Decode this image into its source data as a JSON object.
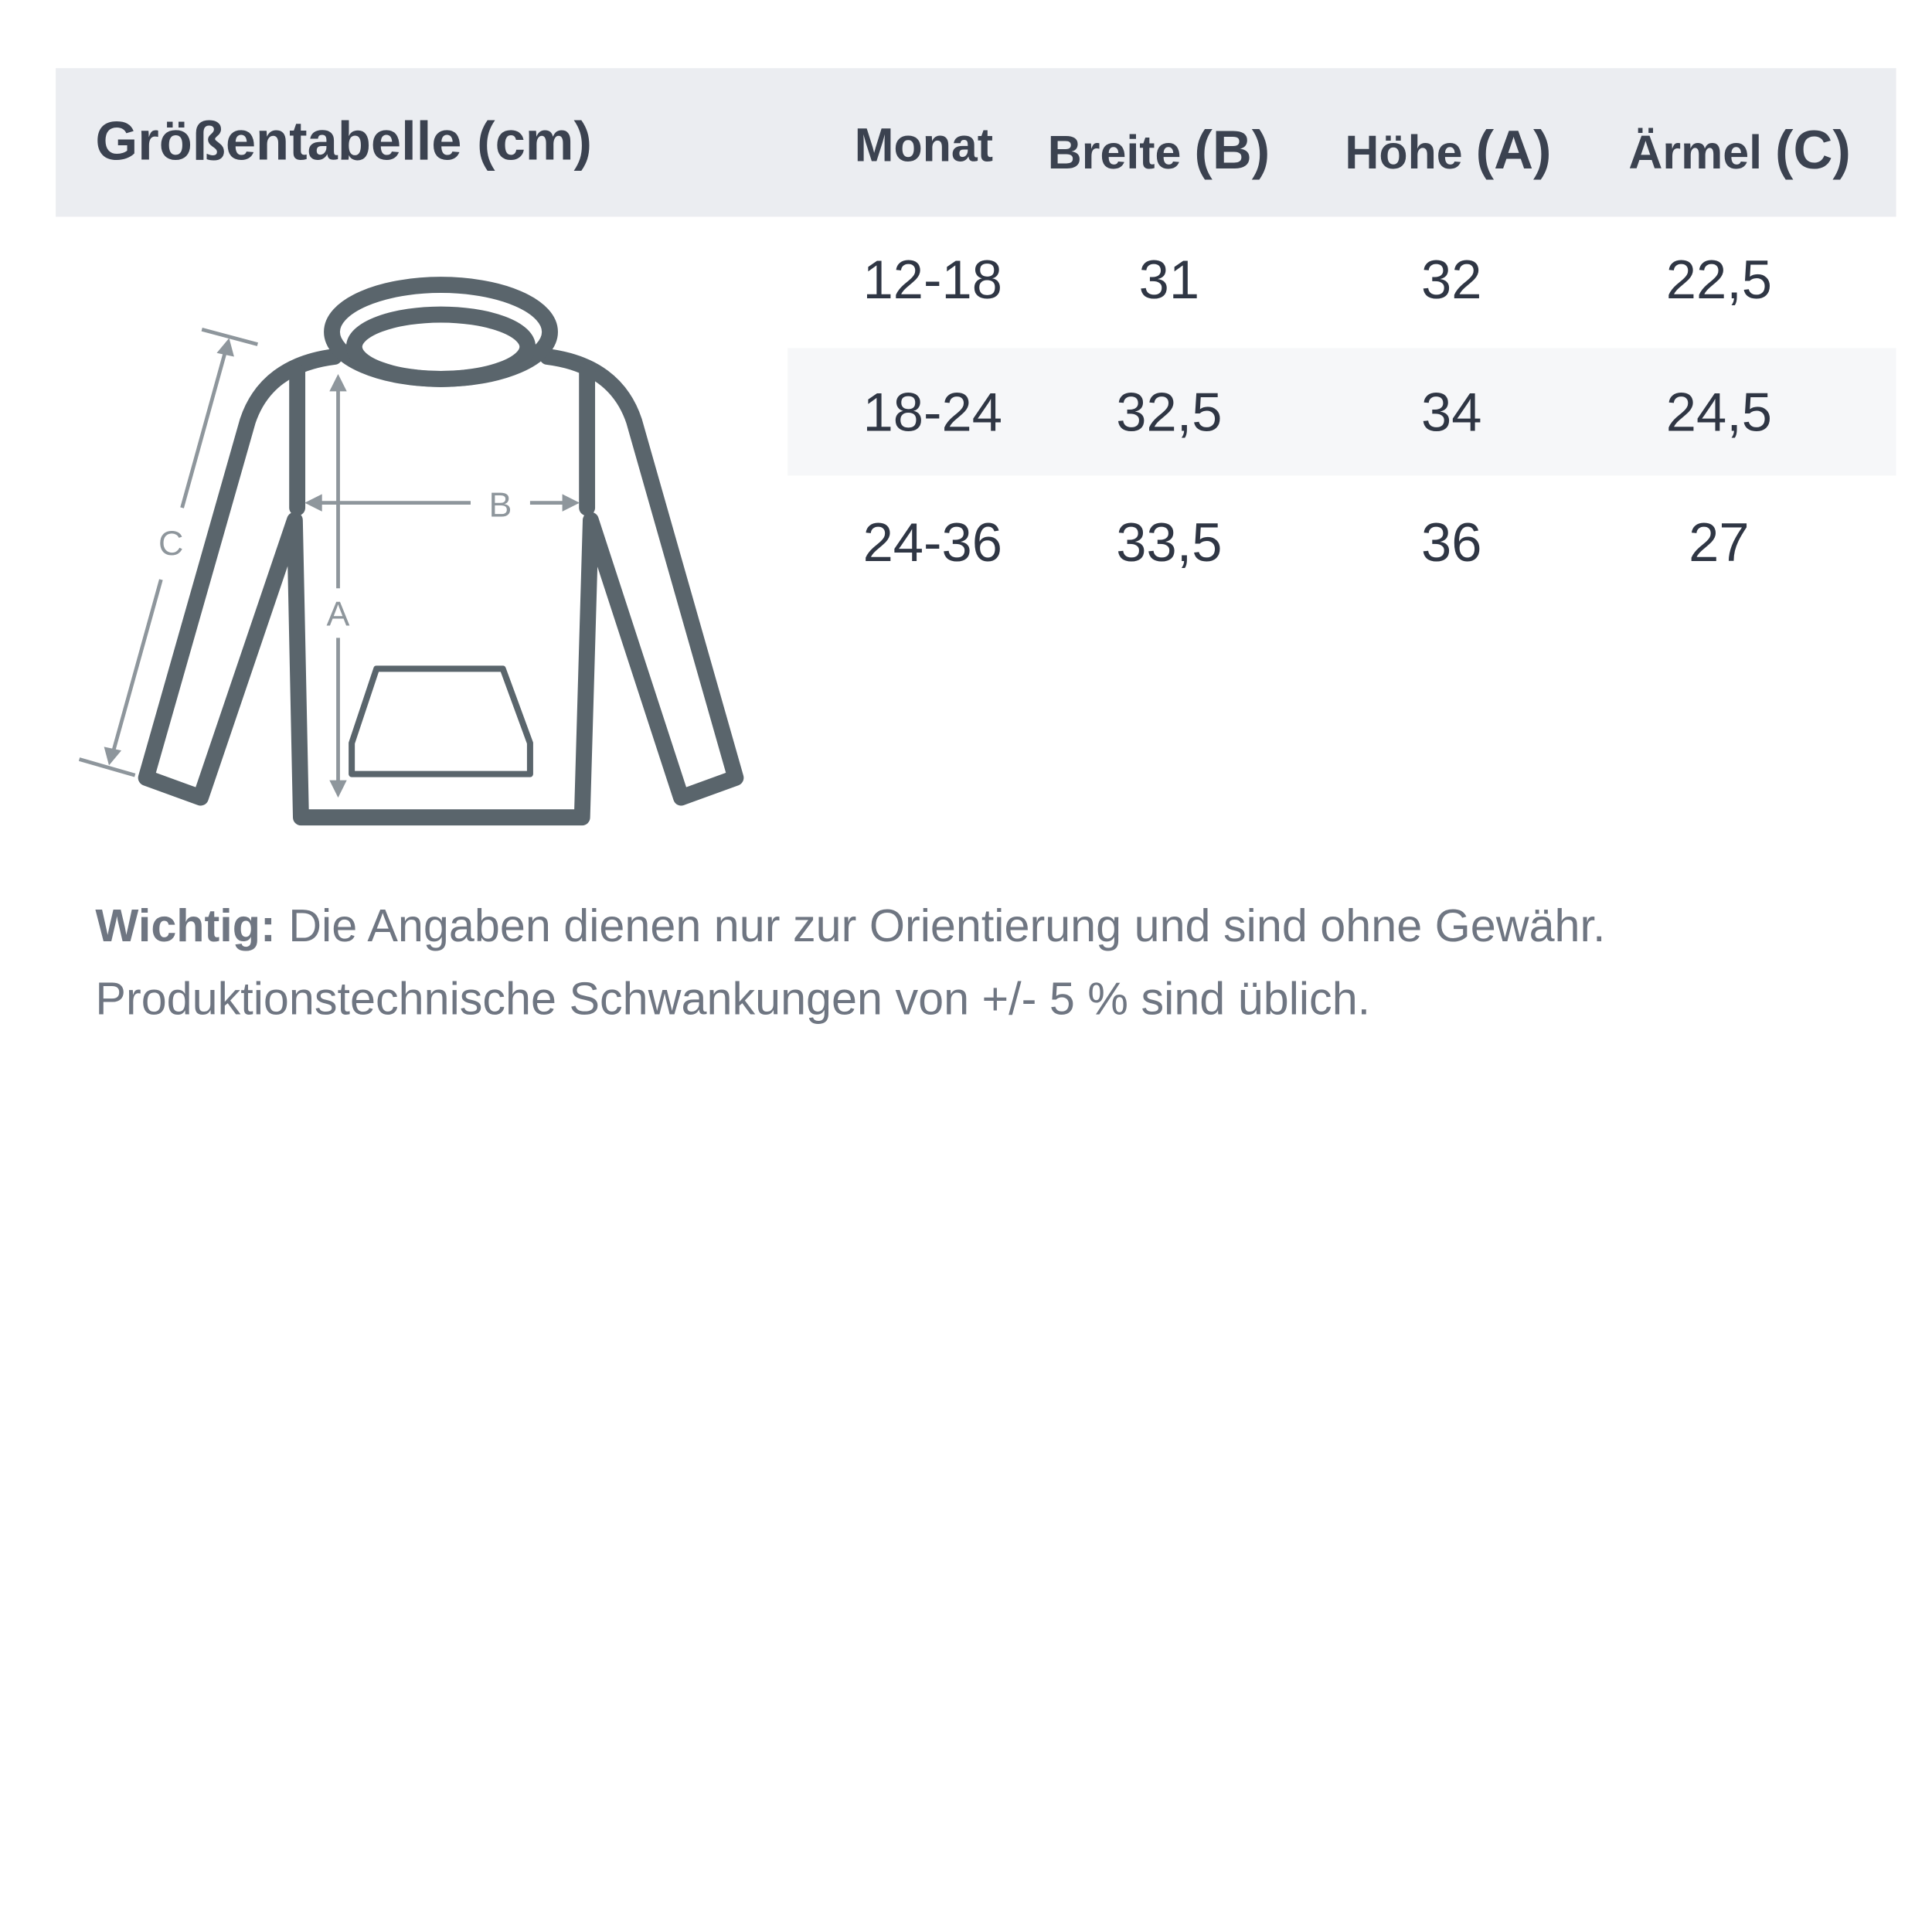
{
  "title": "Größentabelle (cm)",
  "columns": [
    {
      "label": "Monat",
      "letter": ""
    },
    {
      "label": "Breite",
      "letter": "(B)"
    },
    {
      "label": "Höhe",
      "letter": "(A)"
    },
    {
      "label": "Ärmel",
      "letter": "(C)"
    }
  ],
  "rows": [
    [
      "12-18",
      "31",
      "32",
      "22,5"
    ],
    [
      "18-24",
      "32,5",
      "34",
      "24,5"
    ],
    [
      "24-36",
      "33,5",
      "36",
      "27"
    ]
  ],
  "diagram": {
    "label_a": "A",
    "label_b": "B",
    "label_c": "C",
    "icon": "hoodie-measurement-diagram"
  },
  "note": {
    "bold": "Wichtig:",
    "line1": " Die Angaben dienen nur zur Orientierung und sind ohne Gewähr.",
    "line2": "Produktionstechnische Schwankungen von +/- 5 % sind üblich."
  },
  "colors": {
    "header_bg": "#ebedf1",
    "stripe_bg": "#f6f7f9",
    "outline": "#5a656c",
    "measure": "#8e969c"
  }
}
